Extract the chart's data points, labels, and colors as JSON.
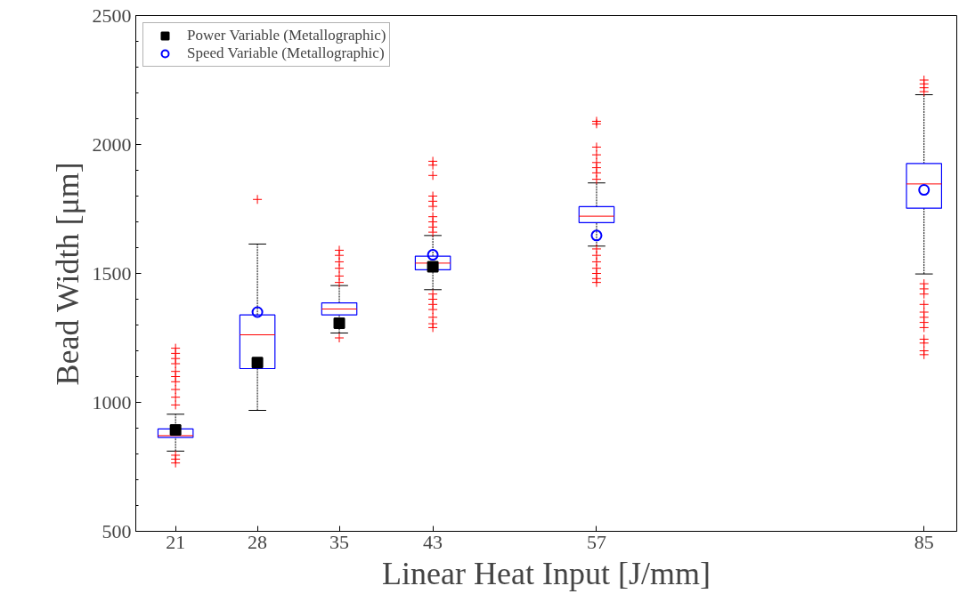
{
  "chart_data": {
    "type": "box",
    "xlabel": "Linear Heat Input [J/mm]",
    "ylabel": "Bead Width [μm]",
    "xlim": [
      17.6,
      87.8
    ],
    "xticks": [
      21,
      28,
      35,
      43,
      57,
      85
    ],
    "ylim": [
      500,
      2500
    ],
    "yticks": [
      500,
      1000,
      1500,
      2000,
      2500
    ],
    "grid": false,
    "legend": "top left",
    "series": [
      {
        "color": "#0000ff",
        "x": [
          21,
          28,
          35,
          43,
          57,
          85
        ],
        "boxes": [
          {
            "low": 811,
            "q1": 864,
            "median": 871,
            "q3": 897,
            "high": 954,
            "outliers": [
              765,
              780,
              795,
              990,
              1020,
              1050,
              1080,
              1100,
              1120,
              1150,
              1170,
              1190,
              1210
            ]
          },
          {
            "low": 969,
            "q1": 1131,
            "median": 1262,
            "q3": 1339,
            "high": 1614,
            "outliers": [
              1787
            ]
          },
          {
            "low": 1269,
            "q1": 1339,
            "median": 1362,
            "q3": 1386,
            "high": 1453,
            "outliers": [
              1250,
              1465,
              1490,
              1520,
              1545,
              1570,
              1590
            ]
          },
          {
            "low": 1437,
            "q1": 1514,
            "median": 1540,
            "q3": 1567,
            "high": 1647,
            "outliers": [
              1290,
              1305,
              1330,
              1360,
              1380,
              1400,
              1420,
              1660,
              1680,
              1700,
              1720,
              1760,
              1780,
              1800,
              1880,
              1920,
              1935
            ]
          },
          {
            "low": 1606,
            "q1": 1697,
            "median": 1722,
            "q3": 1759,
            "high": 1851,
            "outliers": [
              1465,
              1480,
              1500,
              1520,
              1545,
              1570,
              1595,
              1865,
              1890,
              1910,
              1930,
              1960,
              1990,
              2080,
              2090
            ]
          },
          {
            "low": 1498,
            "q1": 1753,
            "median": 1847,
            "q3": 1926,
            "high": 2193,
            "outliers": [
              1185,
              1200,
              1230,
              1245,
              1290,
              1310,
              1330,
              1350,
              1380,
              1420,
              1440,
              1460,
              2205,
              2220,
              2235,
              2250
            ]
          }
        ]
      },
      {
        "type": "scatter",
        "name": "Power Variable (Metallographic)",
        "color": "#000000",
        "marker": "square",
        "x": [
          21,
          28,
          35,
          43
        ],
        "values": [
          893,
          1154,
          1307,
          1526
        ]
      },
      {
        "type": "scatter",
        "name": "Speed Variable (Metallographic)",
        "color": "#0000ff",
        "marker": "circle",
        "x": [
          28,
          43,
          57,
          85
        ],
        "values": [
          1350,
          1572,
          1647,
          1824
        ]
      }
    ]
  }
}
